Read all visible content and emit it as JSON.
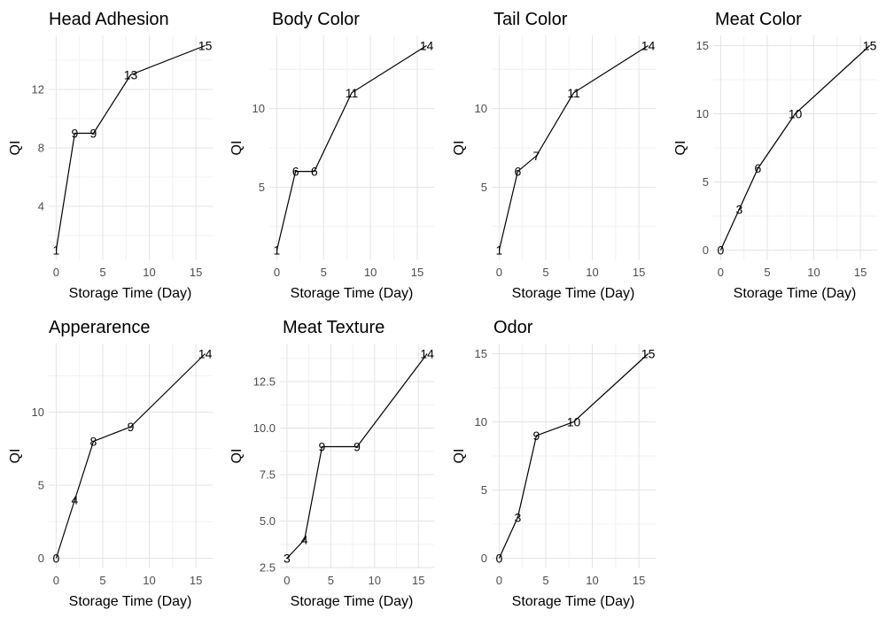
{
  "chart_data": [
    {
      "type": "line",
      "title": "Head Adhesion",
      "xlabel": "Storage Time (Day)",
      "ylabel": "QI",
      "x": [
        0,
        2,
        4,
        8,
        16
      ],
      "values": [
        1,
        9,
        9,
        13,
        15
      ],
      "labels": [
        "1",
        "9",
        "9",
        "13",
        "15"
      ],
      "xlim": [
        -0.8,
        16.8
      ],
      "ylim": [
        0.3,
        15.7
      ],
      "xticks": [
        0,
        5,
        10,
        15
      ],
      "xtick_labels": [
        "0",
        "5",
        "10",
        "15"
      ],
      "yticks": [
        4,
        8,
        12
      ],
      "ytick_labels": [
        "4",
        "8",
        "12"
      ],
      "grid": true
    },
    {
      "type": "line",
      "title": "Body Color",
      "xlabel": "Storage Time (Day)",
      "ylabel": "QI",
      "x": [
        0,
        2,
        4,
        8,
        16
      ],
      "values": [
        1,
        6,
        6,
        11,
        14
      ],
      "labels": [
        "1",
        "6",
        "6",
        "11",
        "14"
      ],
      "xlim": [
        -0.8,
        16.8
      ],
      "ylim": [
        0.35,
        14.65
      ],
      "xticks": [
        0,
        5,
        10,
        15
      ],
      "xtick_labels": [
        "0",
        "5",
        "10",
        "15"
      ],
      "yticks": [
        5,
        10
      ],
      "ytick_labels": [
        "5",
        "10"
      ],
      "grid": true
    },
    {
      "type": "line",
      "title": "Tail Color",
      "xlabel": "Storage Time (Day)",
      "ylabel": "QI",
      "x": [
        0,
        2,
        4,
        8,
        16
      ],
      "values": [
        1,
        6,
        7,
        11,
        14
      ],
      "labels": [
        "1",
        "6",
        "7",
        "11",
        "14"
      ],
      "xlim": [
        -0.8,
        16.8
      ],
      "ylim": [
        0.35,
        14.65
      ],
      "xticks": [
        0,
        5,
        10,
        15
      ],
      "xtick_labels": [
        "0",
        "5",
        "10",
        "15"
      ],
      "yticks": [
        5,
        10
      ],
      "ytick_labels": [
        "5",
        "10"
      ],
      "grid": true
    },
    {
      "type": "line",
      "title": "Meat Color",
      "xlabel": "Storage Time (Day)",
      "ylabel": "QI",
      "x": [
        0,
        2,
        4,
        8,
        16
      ],
      "values": [
        0,
        3,
        6,
        10,
        15
      ],
      "labels": [
        "0",
        "3",
        "6",
        "10",
        "15"
      ],
      "xlim": [
        -0.8,
        16.8
      ],
      "ylim": [
        -0.75,
        15.75
      ],
      "xticks": [
        0,
        5,
        10,
        15
      ],
      "xtick_labels": [
        "0",
        "5",
        "10",
        "15"
      ],
      "yticks": [
        0,
        5,
        10,
        15
      ],
      "ytick_labels": [
        "0",
        "5",
        "10",
        "15"
      ],
      "grid": true
    },
    {
      "type": "line",
      "title": "Apperarence",
      "xlabel": "Storage Time (Day)",
      "ylabel": "QI",
      "x": [
        0,
        2,
        4,
        8,
        16
      ],
      "values": [
        0,
        4,
        8,
        9,
        14
      ],
      "labels": [
        "0",
        "4",
        "8",
        "9",
        "14"
      ],
      "xlim": [
        -0.8,
        16.8
      ],
      "ylim": [
        -0.7,
        14.7
      ],
      "xticks": [
        0,
        5,
        10,
        15
      ],
      "xtick_labels": [
        "0",
        "5",
        "10",
        "15"
      ],
      "yticks": [
        0,
        5,
        10
      ],
      "ytick_labels": [
        "0",
        "5",
        "10"
      ],
      "grid": true
    },
    {
      "type": "line",
      "title": "Meat Texture",
      "xlabel": "Storage Time (Day)",
      "ylabel": "QI",
      "x": [
        0,
        2,
        4,
        8,
        16
      ],
      "values": [
        3,
        4,
        9,
        9,
        14
      ],
      "labels": [
        "3",
        "4",
        "9",
        "9",
        "14"
      ],
      "xlim": [
        -0.8,
        16.8
      ],
      "ylim": [
        2.45,
        14.55
      ],
      "xticks": [
        0,
        5,
        10,
        15
      ],
      "xtick_labels": [
        "0",
        "5",
        "10",
        "15"
      ],
      "yticks": [
        2.5,
        5.0,
        7.5,
        10.0,
        12.5
      ],
      "ytick_labels": [
        "2.5",
        "5.0",
        "7.5",
        "10.0",
        "12.5"
      ],
      "grid": true
    },
    {
      "type": "line",
      "title": "Odor",
      "xlabel": "Storage Time (Day)",
      "ylabel": "QI",
      "x": [
        0,
        2,
        4,
        8,
        16
      ],
      "values": [
        0,
        3,
        9,
        10,
        15
      ],
      "labels": [
        "0",
        "3",
        "9",
        "10",
        "15"
      ],
      "xlim": [
        -0.8,
        16.8
      ],
      "ylim": [
        -0.75,
        15.75
      ],
      "xticks": [
        0,
        5,
        10,
        15
      ],
      "xtick_labels": [
        "0",
        "5",
        "10",
        "15"
      ],
      "yticks": [
        0,
        5,
        10,
        15
      ],
      "ytick_labels": [
        "0",
        "5",
        "10",
        "15"
      ],
      "grid": true
    }
  ]
}
